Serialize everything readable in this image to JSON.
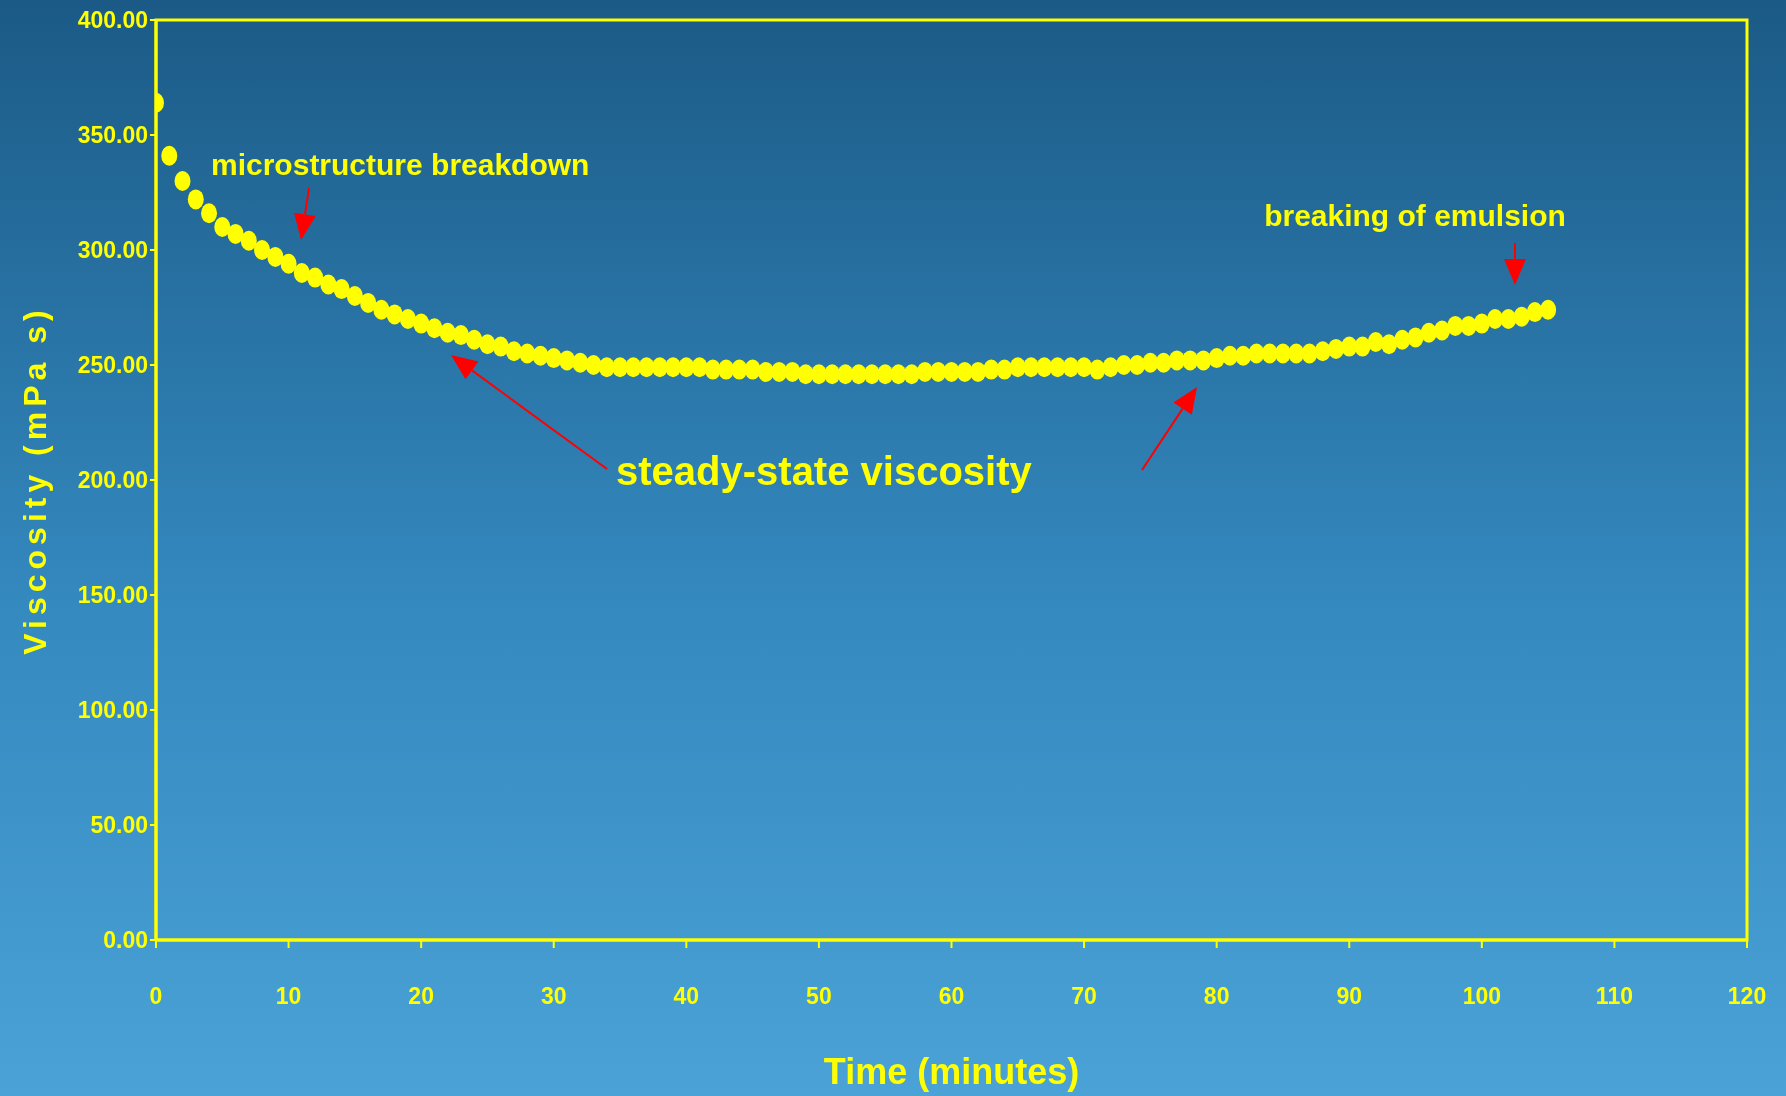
{
  "chart_data": {
    "type": "scatter",
    "xlabel": "Time (minutes)",
    "ylabel": "Viscosity (mPa s)",
    "x": [
      0,
      1,
      2,
      3,
      4,
      5,
      6,
      7,
      8,
      9,
      10,
      11,
      12,
      13,
      14,
      15,
      16,
      17,
      18,
      19,
      20,
      21,
      22,
      23,
      24,
      25,
      26,
      27,
      28,
      29,
      30,
      31,
      32,
      33,
      34,
      35,
      36,
      37,
      38,
      39,
      40,
      41,
      42,
      43,
      44,
      45,
      46,
      47,
      48,
      49,
      50,
      51,
      52,
      53,
      54,
      55,
      56,
      57,
      58,
      59,
      60,
      61,
      62,
      63,
      64,
      65,
      66,
      67,
      68,
      69,
      70,
      71,
      72,
      73,
      74,
      75,
      76,
      77,
      78,
      79,
      80,
      81,
      82,
      83,
      84,
      85,
      86,
      87,
      88,
      89,
      90,
      91,
      92,
      93,
      94,
      95,
      96,
      97,
      98,
      99,
      100,
      101,
      102,
      103,
      104,
      105
    ],
    "series": [
      {
        "color": "#ffff00",
        "values": [
          364,
          341,
          330,
          322,
          316,
          310,
          307,
          304,
          300,
          297,
          294,
          290,
          288,
          285,
          283,
          280,
          277,
          274,
          272,
          270,
          268,
          266,
          264,
          263,
          261,
          259,
          258,
          256,
          255,
          254,
          253,
          252,
          251,
          250,
          249,
          249,
          249,
          249,
          249,
          249,
          249,
          249,
          248,
          248,
          248,
          248,
          247,
          247,
          247,
          246,
          246,
          246,
          246,
          246,
          246,
          246,
          246,
          246,
          247,
          247,
          247,
          247,
          247,
          248,
          248,
          249,
          249,
          249,
          249,
          249,
          249,
          248,
          249,
          250,
          250,
          251,
          251,
          252,
          252,
          252,
          253,
          254,
          254,
          255,
          255,
          255,
          255,
          255,
          256,
          257,
          258,
          258,
          260,
          259,
          261,
          262,
          264,
          265,
          267,
          267,
          268,
          270,
          270,
          271,
          273,
          274
        ]
      }
    ],
    "xlim": [
      0,
      120
    ],
    "xticks": [
      0,
      10,
      20,
      30,
      40,
      50,
      60,
      70,
      80,
      90,
      100,
      110,
      120
    ],
    "ylim": [
      0,
      400
    ],
    "yticks": [
      {
        "value": 0,
        "label": "0.00"
      },
      {
        "value": 50,
        "label": "50.00"
      },
      {
        "value": 100,
        "label": "100.00"
      },
      {
        "value": 150,
        "label": "150.00"
      },
      {
        "value": 200,
        "label": "200.00"
      },
      {
        "value": 250,
        "label": "250.00"
      },
      {
        "value": 300,
        "label": "300.00"
      },
      {
        "value": 350,
        "label": "350.00"
      },
      {
        "value": 400,
        "label": "400.00"
      }
    ],
    "grid": false,
    "legend": false,
    "marker": "circle",
    "annotations": [
      "microstructure breakdown",
      "steady-state viscosity",
      "breaking of emulsion"
    ]
  }
}
